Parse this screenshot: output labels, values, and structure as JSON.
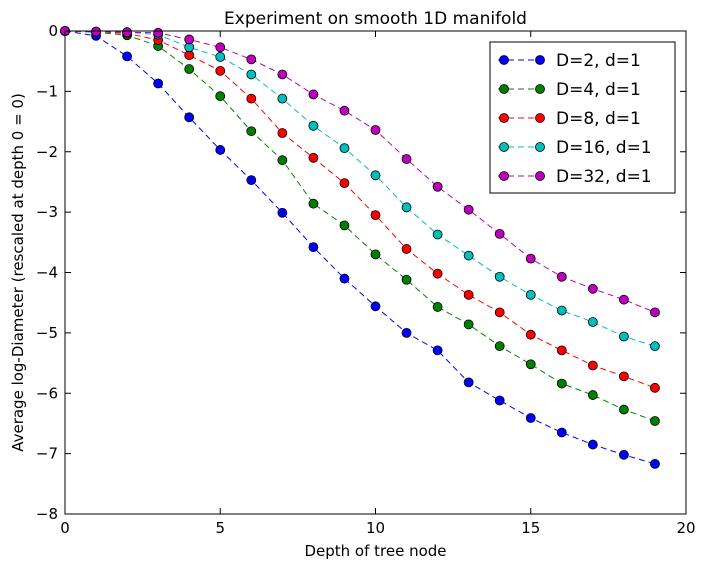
{
  "chart_data": {
    "type": "line",
    "title": "Experiment on smooth 1D manifold",
    "xlabel": "Depth of tree node",
    "ylabel": "Average log-Diameter (rescaled at depth 0 = 0)",
    "xlim": [
      0,
      20
    ],
    "ylim": [
      -8,
      0
    ],
    "xticks": [
      0,
      5,
      10,
      15,
      20
    ],
    "yticks": [
      0,
      -1,
      -2,
      -3,
      -4,
      -5,
      -6,
      -7,
      -8
    ],
    "grid": false,
    "legend_position": "top-right",
    "x": [
      0,
      1,
      2,
      3,
      4,
      5,
      6,
      7,
      8,
      9,
      10,
      11,
      12,
      13,
      14,
      15,
      16,
      17,
      18,
      19
    ],
    "series": [
      {
        "name": "D=2, d=1",
        "color": "#0000ff",
        "values": [
          0,
          -0.08,
          -0.42,
          -0.87,
          -1.43,
          -1.97,
          -2.47,
          -3.01,
          -3.58,
          -4.1,
          -4.56,
          -5.0,
          -5.29,
          -5.82,
          -6.12,
          -6.41,
          -6.65,
          -6.85,
          -7.02,
          -7.17
        ]
      },
      {
        "name": "D=4, d=1",
        "color": "#008000",
        "values": [
          0,
          -0.02,
          -0.07,
          -0.25,
          -0.63,
          -1.08,
          -1.66,
          -2.14,
          -2.86,
          -3.22,
          -3.7,
          -4.12,
          -4.57,
          -4.86,
          -5.22,
          -5.52,
          -5.84,
          -6.03,
          -6.27,
          -6.46
        ]
      },
      {
        "name": "D=8, d=1",
        "color": "#ff0000",
        "values": [
          0,
          -0.01,
          -0.04,
          -0.15,
          -0.4,
          -0.66,
          -1.12,
          -1.69,
          -2.1,
          -2.52,
          -3.05,
          -3.61,
          -4.02,
          -4.37,
          -4.66,
          -5.03,
          -5.29,
          -5.54,
          -5.72,
          -5.91
        ]
      },
      {
        "name": "D=16, d=1",
        "color": "#00bfbf",
        "values": [
          0,
          -0.01,
          -0.02,
          -0.06,
          -0.27,
          -0.43,
          -0.72,
          -1.12,
          -1.57,
          -1.94,
          -2.39,
          -2.92,
          -3.37,
          -3.72,
          -4.07,
          -4.37,
          -4.63,
          -4.82,
          -5.06,
          -5.22
        ]
      },
      {
        "name": "D=32, d=1",
        "color": "#bf00bf",
        "values": [
          0,
          -0.01,
          -0.02,
          -0.03,
          -0.14,
          -0.27,
          -0.47,
          -0.72,
          -1.05,
          -1.32,
          -1.64,
          -2.12,
          -2.58,
          -2.96,
          -3.36,
          -3.77,
          -4.07,
          -4.27,
          -4.45,
          -4.66
        ]
      }
    ]
  }
}
